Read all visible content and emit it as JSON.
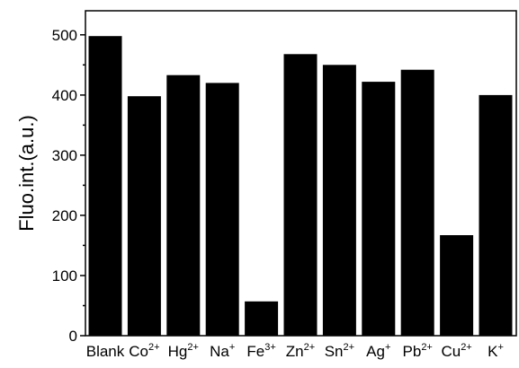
{
  "chart_data": {
    "type": "bar",
    "title": "",
    "xlabel": "",
    "ylabel": "Fluo.int.(a.u.)",
    "ylim": [
      0,
      540
    ],
    "yticks": [
      0,
      100,
      200,
      300,
      400,
      500
    ],
    "grid": false,
    "categories": [
      {
        "base": "Blank",
        "sup": ""
      },
      {
        "base": "Co",
        "sup": "2+"
      },
      {
        "base": "Hg",
        "sup": "2+"
      },
      {
        "base": "Na",
        "sup": "+"
      },
      {
        "base": "Fe",
        "sup": "3+"
      },
      {
        "base": "Zn",
        "sup": "2+"
      },
      {
        "base": "Sn",
        "sup": "2+"
      },
      {
        "base": "Ag",
        "sup": "+"
      },
      {
        "base": "Pb",
        "sup": "2+"
      },
      {
        "base": "Cu",
        "sup": "2+"
      },
      {
        "base": "K",
        "sup": "+"
      }
    ],
    "values": [
      498,
      398,
      433,
      420,
      57,
      468,
      450,
      422,
      442,
      167,
      400
    ],
    "bar_color": "#000000"
  }
}
